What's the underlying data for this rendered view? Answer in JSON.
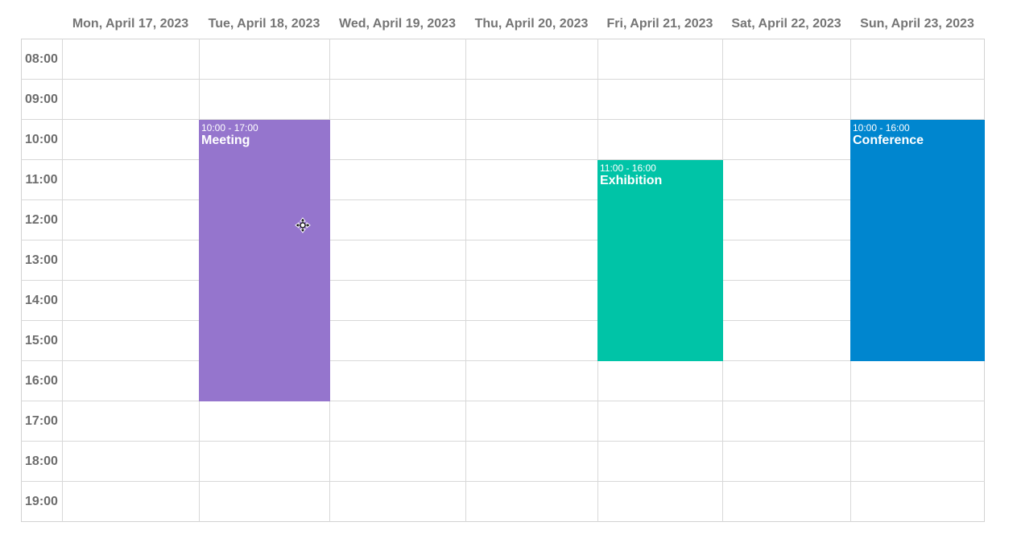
{
  "days": [
    {
      "label": "Mon, April 17, 2023"
    },
    {
      "label": "Tue, April 18, 2023"
    },
    {
      "label": "Wed, April 19, 2023"
    },
    {
      "label": "Thu, April 20, 2023"
    },
    {
      "label": "Fri, April 21, 2023"
    },
    {
      "label": "Sat, April 22, 2023"
    },
    {
      "label": "Sun, April 23, 2023"
    }
  ],
  "hours": [
    "08:00",
    "09:00",
    "10:00",
    "11:00",
    "12:00",
    "13:00",
    "14:00",
    "15:00",
    "16:00",
    "17:00",
    "18:00",
    "19:00"
  ],
  "events": [
    {
      "title": "Meeting",
      "time": "10:00 - 17:00",
      "day_index": 1,
      "start_hour": 10,
      "end_hour": 17,
      "color": "#9575cd"
    },
    {
      "title": "Exhibition",
      "time": "11:00 - 16:00",
      "day_index": 4,
      "start_hour": 11,
      "end_hour": 16,
      "color": "#00c4a7"
    },
    {
      "title": "Conference",
      "time": "10:00 - 16:00",
      "day_index": 6,
      "start_hour": 10,
      "end_hour": 16,
      "color": "#0086cf"
    }
  ],
  "cursor": {
    "icon": "move-cursor-icon"
  }
}
